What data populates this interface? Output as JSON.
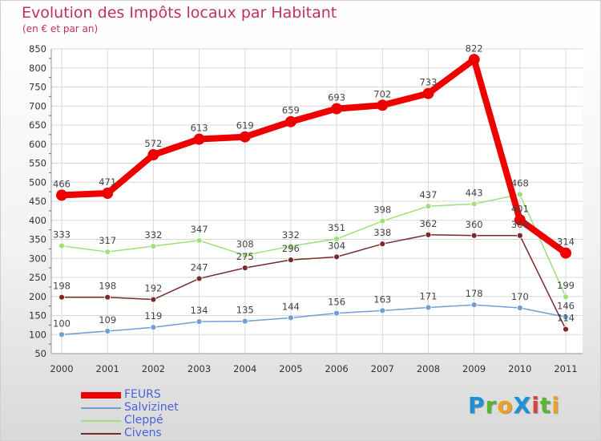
{
  "title": "Evolution des Impôts locaux par Habitant",
  "subtitle": "(en € et par an)",
  "brand": {
    "text": "ProXiti",
    "letters": [
      {
        "ch": "P",
        "color": "#1f8fd6"
      },
      {
        "ch": "r",
        "color": "#5cb531"
      },
      {
        "ch": "o",
        "color": "#f0a020"
      },
      {
        "ch": "X",
        "color": "#1f8fd6"
      },
      {
        "ch": "i",
        "color": "#d94040"
      },
      {
        "ch": "t",
        "color": "#5cb531"
      },
      {
        "ch": "i",
        "color": "#f0a020"
      }
    ]
  },
  "chart_data": {
    "type": "line",
    "x": [
      "2000",
      "2001",
      "2002",
      "2003",
      "2004",
      "2005",
      "2006",
      "2007",
      "2008",
      "2009",
      "2010",
      "2011"
    ],
    "ylim": [
      50,
      850
    ],
    "yticks": [
      50,
      100,
      150,
      200,
      250,
      300,
      350,
      400,
      450,
      500,
      550,
      600,
      650,
      700,
      750,
      800,
      850
    ],
    "grid": true,
    "legend_position": "bottom-left",
    "series": [
      {
        "name": "FEURS",
        "color": "#ee0000",
        "values": [
          466,
          471,
          572,
          613,
          619,
          659,
          693,
          702,
          733,
          822,
          401,
          314
        ],
        "labels": [
          "466",
          "471",
          "572",
          "613",
          "619",
          "659",
          "693",
          "702",
          "733",
          "822",
          "401",
          "314"
        ]
      },
      {
        "name": "Salvizinet",
        "color": "#6e9fd6",
        "values": [
          100,
          109,
          119,
          134,
          135,
          144,
          156,
          163,
          171,
          178,
          170,
          146
        ],
        "labels": [
          "100",
          "109",
          "119",
          "134",
          "135",
          "144",
          "156",
          "163",
          "171",
          "178",
          "170",
          "146"
        ]
      },
      {
        "name": "Cleppé",
        "color": "#9ee07a",
        "values": [
          333,
          317,
          332,
          347,
          308,
          332,
          351,
          398,
          437,
          443,
          468,
          199
        ],
        "labels": [
          "333",
          "317",
          "332",
          "347",
          "308",
          "332",
          "351",
          "398",
          "437",
          "443",
          "468",
          "199"
        ]
      },
      {
        "name": "Civens",
        "color": "#7a2a2a",
        "values": [
          198,
          198,
          192,
          247,
          275,
          296,
          304,
          338,
          362,
          360,
          360,
          114
        ],
        "labels": [
          "198",
          "198",
          "192",
          "247",
          "275",
          "296",
          "304",
          "338",
          "362",
          "360",
          "360",
          "114"
        ]
      }
    ]
  }
}
